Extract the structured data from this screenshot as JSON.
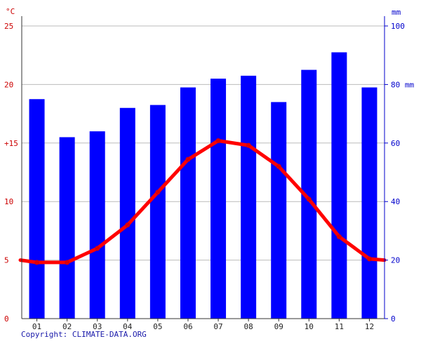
{
  "chart_data": {
    "type": "bar+line",
    "categories": [
      "01",
      "02",
      "03",
      "04",
      "05",
      "06",
      "07",
      "08",
      "09",
      "10",
      "11",
      "12"
    ],
    "series": [
      {
        "axis": "right",
        "type": "bar",
        "color": "#0000ff",
        "values": [
          75,
          62,
          64,
          72,
          73,
          79,
          82,
          83,
          74,
          85,
          91,
          79
        ]
      },
      {
        "axis": "left",
        "type": "line",
        "color": "#ff0000",
        "values": [
          4.8,
          4.8,
          6.0,
          8.0,
          10.8,
          13.6,
          15.2,
          14.8,
          13.0,
          10.2,
          7.0,
          5.1
        ],
        "edge_values": [
          5.0,
          5.0
        ]
      }
    ],
    "left_axis": {
      "unit": "°C",
      "ticks": [
        "0",
        "5",
        "10",
        "+15",
        "20",
        "25"
      ],
      "range": [
        0,
        25
      ]
    },
    "right_axis": {
      "unit": "mm",
      "ticks": [
        "0",
        "20",
        "40",
        "60",
        "80 mm",
        "100"
      ],
      "range": [
        0,
        100
      ]
    },
    "grid": true
  },
  "footer": {
    "copyright": "Copyright: CLIMATE-DATA.ORG"
  },
  "colors": {
    "left_axis": "#cc0000",
    "right_axis": "#0000cc",
    "grid": "#bbbbbb"
  }
}
